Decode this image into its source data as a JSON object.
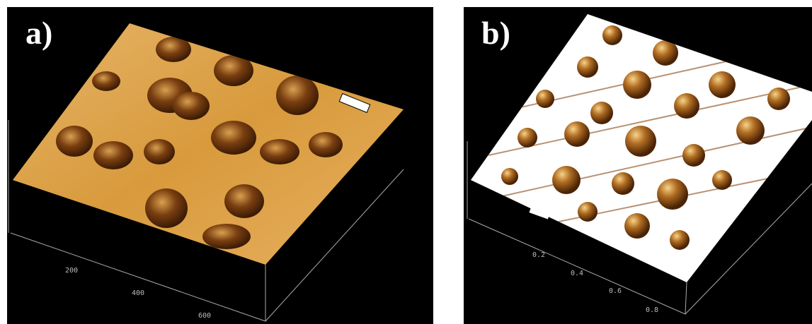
{
  "panels": [
    {
      "label": "a)",
      "ticks": [
        "200",
        "400",
        "600"
      ]
    },
    {
      "label": "b)",
      "ticks": [
        "0.2",
        "0.4",
        "0.6",
        "0.8"
      ]
    }
  ]
}
